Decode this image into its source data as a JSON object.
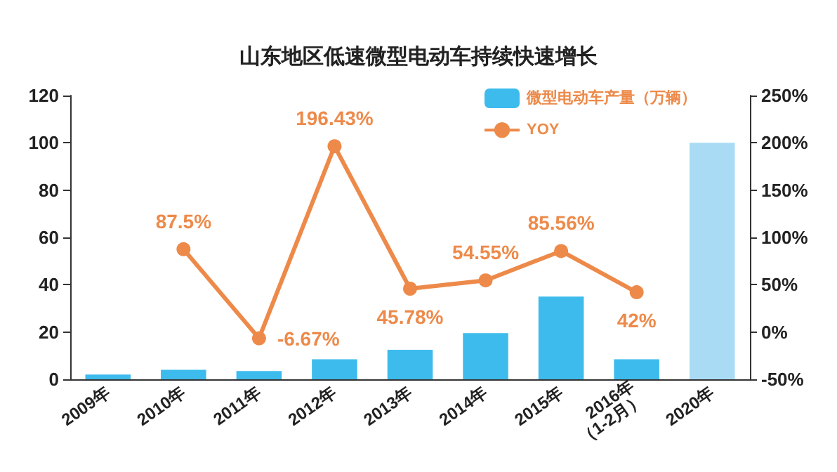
{
  "chart_data": {
    "type": "bar",
    "title": "山东地区低速微型电动车持续快速增长",
    "categories": [
      "2009年",
      "2010年",
      "2011年",
      "2012年",
      "2013年",
      "2014年",
      "2015年",
      "2016年\n（1-2月）",
      "2020年"
    ],
    "series": [
      {
        "name": "微型电动车产量（万辆）",
        "color": "#3dbbed",
        "colors": [
          "#3dbbed",
          "#3dbbed",
          "#3dbbed",
          "#3dbbed",
          "#3dbbed",
          "#3dbbed",
          "#3dbbed",
          "#3dbbed",
          "#a9dcf4"
        ],
        "values": [
          2,
          4,
          3.5,
          8.5,
          12.5,
          19.5,
          35,
          8.5,
          100
        ]
      },
      {
        "name": "YOY",
        "type": "line",
        "axis": "y2",
        "color": "#ed8a4a",
        "marker": "circle",
        "values": [
          null,
          87.5,
          -6.67,
          196.43,
          45.78,
          54.55,
          85.56,
          42,
          null
        ],
        "value_labels": [
          null,
          "87.5%",
          "-6.67%",
          "196.43%",
          "45.78%",
          "54.55%",
          "85.56%",
          "42%",
          null
        ]
      }
    ],
    "ylim": [
      0,
      120
    ],
    "yticks": [
      0,
      20,
      40,
      60,
      80,
      100,
      120
    ],
    "y2lim": [
      -50,
      250
    ],
    "y2ticks": [
      {
        "value": -50,
        "label": "-50%"
      },
      {
        "value": 0,
        "label": "0%"
      },
      {
        "value": 50,
        "label": "50%"
      },
      {
        "value": 100,
        "label": "100%"
      },
      {
        "value": 150,
        "label": "150%"
      },
      {
        "value": 200,
        "label": "200%"
      },
      {
        "value": 250,
        "label": "250%"
      }
    ],
    "grid": false,
    "legend": "top right"
  }
}
